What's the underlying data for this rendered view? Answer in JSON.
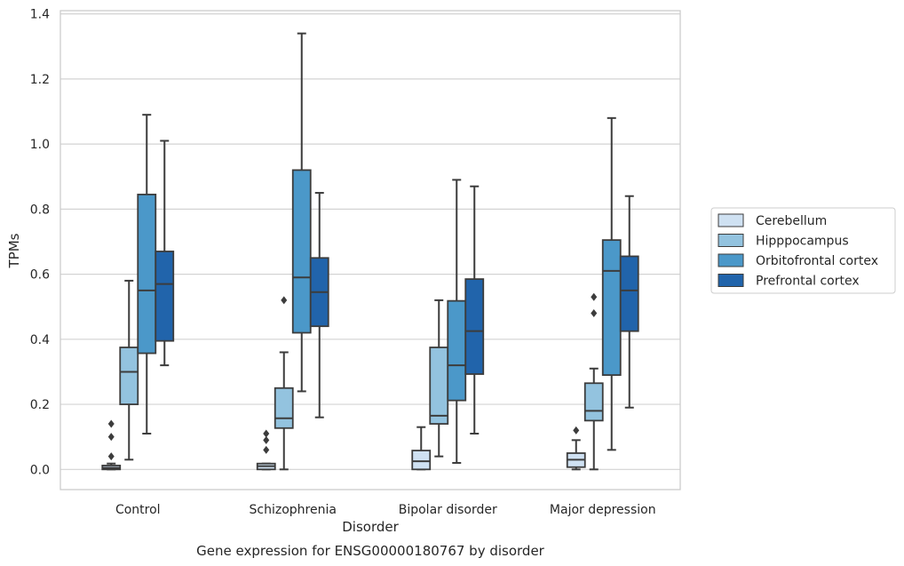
{
  "chart_data": {
    "type": "boxplot",
    "title": "",
    "caption": "Gene expression for ENSG00000180767 by disorder",
    "xlabel": "Disorder",
    "ylabel": "TPMs",
    "ylim": [
      -0.062,
      1.41
    ],
    "yticks": [
      0.0,
      0.2,
      0.4,
      0.6,
      0.8,
      1.0,
      1.2,
      1.4
    ],
    "ytick_labels": [
      "0.0",
      "0.2",
      "0.4",
      "0.6",
      "0.8",
      "1.0",
      "1.2",
      "1.4"
    ],
    "grid": "horizontal",
    "legend_position": "right",
    "categories": [
      "Control",
      "Schizophrenia",
      "Bipolar disorder",
      "Major depression"
    ],
    "series": [
      {
        "name": "Cerebellum",
        "color": "#cfe1f2",
        "boxes": [
          {
            "whislo": 0.0,
            "q1": 0.0,
            "med": 0.005,
            "q3": 0.012,
            "whishi": 0.018,
            "fliers": [
              0.04,
              0.1,
              0.14
            ]
          },
          {
            "whislo": 0.0,
            "q1": 0.0,
            "med": 0.01,
            "q3": 0.018,
            "whishi": 0.018,
            "fliers": [
              0.06,
              0.09,
              0.11
            ]
          },
          {
            "whislo": 0.0,
            "q1": 0.0,
            "med": 0.025,
            "q3": 0.058,
            "whishi": 0.13,
            "fliers": []
          },
          {
            "whislo": 0.0,
            "q1": 0.007,
            "med": 0.03,
            "q3": 0.05,
            "whishi": 0.09,
            "fliers": [
              0.12
            ]
          }
        ]
      },
      {
        "name": "Hipppocampus",
        "color": "#93c3df",
        "boxes": [
          {
            "whislo": 0.03,
            "q1": 0.2,
            "med": 0.3,
            "q3": 0.375,
            "whishi": 0.58,
            "fliers": []
          },
          {
            "whislo": 0.0,
            "q1": 0.127,
            "med": 0.157,
            "q3": 0.25,
            "whishi": 0.36,
            "fliers": [
              0.52
            ]
          },
          {
            "whislo": 0.04,
            "q1": 0.14,
            "med": 0.165,
            "q3": 0.375,
            "whishi": 0.52,
            "fliers": []
          },
          {
            "whislo": 0.0,
            "q1": 0.15,
            "med": 0.18,
            "q3": 0.265,
            "whishi": 0.31,
            "fliers": [
              0.48,
              0.53
            ]
          }
        ]
      },
      {
        "name": "Orbitofrontal cortex",
        "color": "#4b98c9",
        "boxes": [
          {
            "whislo": 0.11,
            "q1": 0.357,
            "med": 0.55,
            "q3": 0.845,
            "whishi": 1.09,
            "fliers": []
          },
          {
            "whislo": 0.24,
            "q1": 0.42,
            "med": 0.59,
            "q3": 0.92,
            "whishi": 1.34,
            "fliers": []
          },
          {
            "whislo": 0.02,
            "q1": 0.212,
            "med": 0.32,
            "q3": 0.518,
            "whishi": 0.89,
            "fliers": []
          },
          {
            "whislo": 0.06,
            "q1": 0.29,
            "med": 0.61,
            "q3": 0.705,
            "whishi": 1.08,
            "fliers": []
          }
        ]
      },
      {
        "name": "Prefrontal cortex",
        "color": "#2164ab",
        "boxes": [
          {
            "whislo": 0.32,
            "q1": 0.395,
            "med": 0.57,
            "q3": 0.67,
            "whishi": 1.01,
            "fliers": []
          },
          {
            "whislo": 0.16,
            "q1": 0.44,
            "med": 0.545,
            "q3": 0.65,
            "whishi": 0.85,
            "fliers": []
          },
          {
            "whislo": 0.11,
            "q1": 0.293,
            "med": 0.425,
            "q3": 0.585,
            "whishi": 0.87,
            "fliers": []
          },
          {
            "whislo": 0.19,
            "q1": 0.425,
            "med": 0.55,
            "q3": 0.655,
            "whishi": 0.84,
            "fliers": []
          }
        ]
      }
    ]
  }
}
